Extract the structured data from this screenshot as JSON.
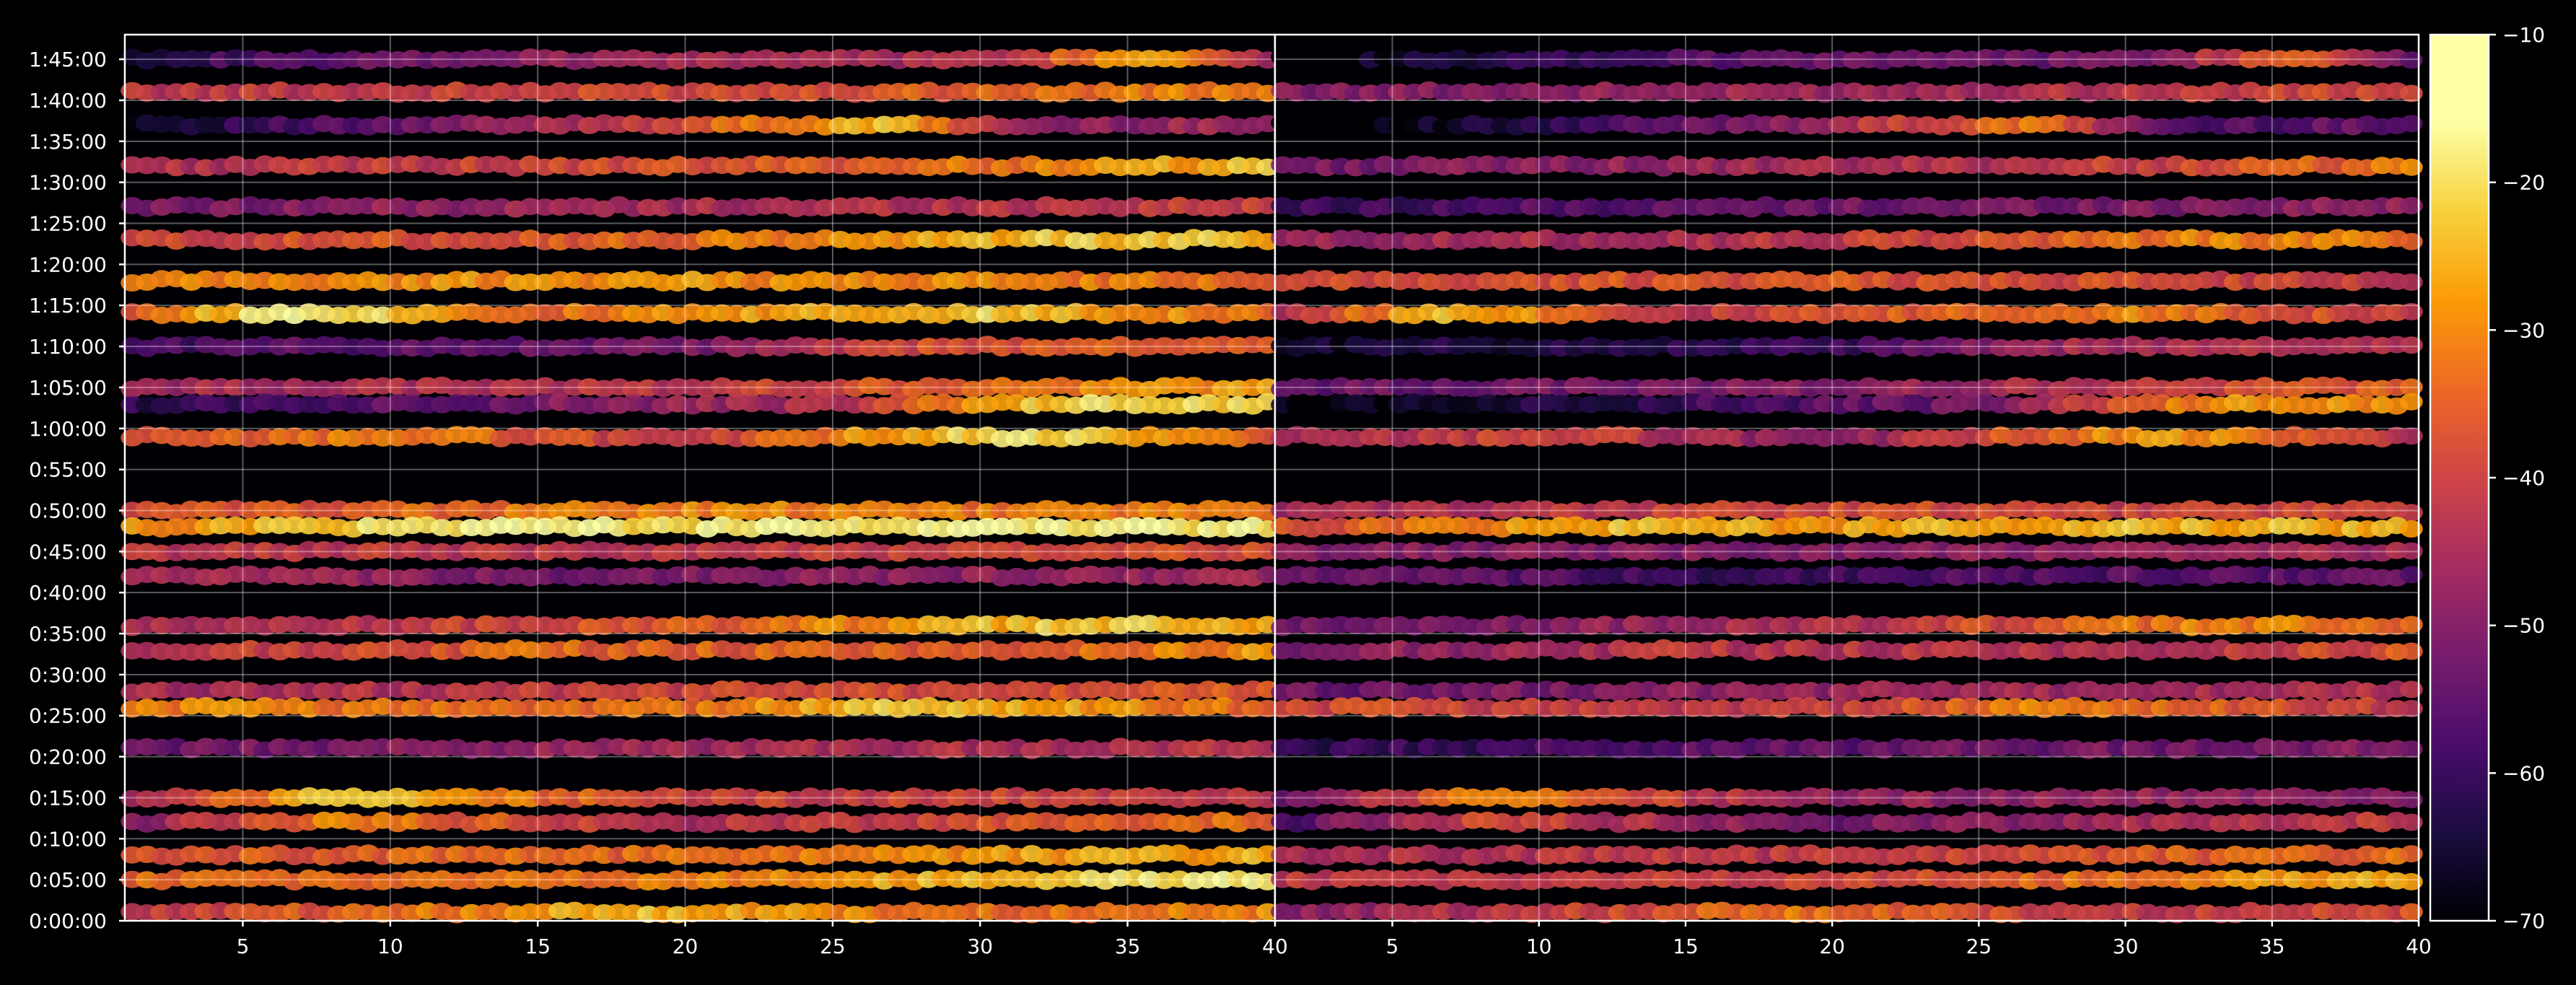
{
  "chart_data": {
    "type": "heatmap",
    "title": "",
    "xlabel": "",
    "ylabel": "",
    "colormap": "inferno",
    "background": "#000000",
    "grid": true,
    "panels": [
      {
        "name": "",
        "x_range": [
          1,
          40
        ],
        "x_ticks": [
          5,
          10,
          15,
          20,
          25,
          30,
          35,
          40
        ]
      },
      {
        "name": "",
        "x_range": [
          1,
          40
        ],
        "x_ticks": [
          5,
          10,
          15,
          20,
          25,
          30,
          35,
          40
        ]
      }
    ],
    "y_range_seconds": [
      0,
      6480
    ],
    "y_ticks": [
      "0:00:00",
      "0:05:00",
      "0:10:00",
      "0:15:00",
      "0:20:00",
      "0:25:00",
      "0:30:00",
      "0:35:00",
      "0:40:00",
      "0:45:00",
      "0:50:00",
      "0:55:00",
      "1:00:00",
      "1:05:00",
      "1:10:00",
      "1:15:00",
      "1:20:00",
      "1:25:00",
      "1:30:00",
      "1:35:00",
      "1:40:00",
      "1:45:00"
    ],
    "colorbar": {
      "range": [
        -70,
        -10
      ],
      "ticks": [
        "−10",
        "−20",
        "−30",
        "−40",
        "−50",
        "−60",
        "−70"
      ],
      "tick_values": [
        -10,
        -20,
        -30,
        -40,
        -50,
        -60,
        -70
      ]
    },
    "bands": [
      {
        "time": "1:45:00",
        "level": -48,
        "profile": [
          [
            1,
            -62
          ],
          [
            20,
            -45
          ],
          [
            30,
            -44
          ],
          [
            36,
            -24
          ],
          [
            40,
            -45
          ]
        ]
      },
      {
        "time": "1:41:00",
        "level": -38,
        "profile": [
          [
            1,
            -42
          ],
          [
            15,
            -40
          ],
          [
            25,
            -36
          ],
          [
            40,
            -30
          ]
        ]
      },
      {
        "time": "1:37:00",
        "level": -58,
        "profile": [
          [
            1,
            -66
          ],
          [
            10,
            -55
          ],
          [
            27,
            -24
          ],
          [
            32,
            -50
          ],
          [
            40,
            -45
          ]
        ]
      },
      {
        "time": "1:32:00",
        "level": -36,
        "profile": [
          [
            1,
            -44
          ],
          [
            20,
            -38
          ],
          [
            30,
            -32
          ],
          [
            40,
            -24
          ]
        ]
      },
      {
        "time": "1:27:00",
        "level": -46,
        "profile": [
          [
            1,
            -52
          ],
          [
            20,
            -45
          ],
          [
            40,
            -40
          ]
        ]
      },
      {
        "time": "1:23:00",
        "level": -32,
        "profile": [
          [
            1,
            -40
          ],
          [
            20,
            -34
          ],
          [
            33,
            -22
          ],
          [
            40,
            -24
          ]
        ]
      },
      {
        "time": "1:18:00",
        "level": -30,
        "profile": [
          [
            1,
            -32
          ],
          [
            15,
            -28
          ],
          [
            30,
            -30
          ],
          [
            40,
            -34
          ]
        ]
      },
      {
        "time": "1:14:00",
        "level": -30,
        "profile": [
          [
            1,
            -36
          ],
          [
            7,
            -14
          ],
          [
            15,
            -34
          ],
          [
            30,
            -22
          ],
          [
            40,
            -32
          ]
        ]
      },
      {
        "time": "1:10:00",
        "level": -50,
        "profile": [
          [
            1,
            -58
          ],
          [
            20,
            -52
          ],
          [
            28,
            -38
          ],
          [
            40,
            -34
          ]
        ]
      },
      {
        "time": "1:05:00",
        "level": -40,
        "profile": [
          [
            1,
            -46
          ],
          [
            20,
            -42
          ],
          [
            35,
            -30
          ],
          [
            40,
            -26
          ]
        ]
      },
      {
        "time": "1:03:00",
        "level": -52,
        "profile": [
          [
            1,
            -62
          ],
          [
            25,
            -44
          ],
          [
            33,
            -20
          ],
          [
            40,
            -22
          ]
        ]
      },
      {
        "time": "0:59:00",
        "level": -36,
        "profile": [
          [
            1,
            -40
          ],
          [
            10,
            -30
          ],
          [
            20,
            -42
          ],
          [
            31,
            -18
          ],
          [
            40,
            -36
          ]
        ]
      },
      {
        "time": "0:50:00",
        "level": -34,
        "profile": [
          [
            1,
            -38
          ],
          [
            20,
            -30
          ],
          [
            30,
            -32
          ],
          [
            40,
            -30
          ]
        ]
      },
      {
        "time": "0:48:00",
        "level": -24,
        "profile": [
          [
            1,
            -30
          ],
          [
            13,
            -16
          ],
          [
            20,
            -20
          ],
          [
            28,
            -16
          ],
          [
            40,
            -18
          ]
        ]
      },
      {
        "time": "0:45:00",
        "level": -40,
        "profile": [
          [
            1,
            -42
          ],
          [
            20,
            -42
          ],
          [
            40,
            -38
          ]
        ]
      },
      {
        "time": "0:42:00",
        "level": -46,
        "profile": [
          [
            1,
            -44
          ],
          [
            15,
            -52
          ],
          [
            40,
            -46
          ]
        ]
      },
      {
        "time": "0:36:00",
        "level": -38,
        "profile": [
          [
            1,
            -46
          ],
          [
            20,
            -36
          ],
          [
            33,
            -22
          ],
          [
            40,
            -26
          ]
        ]
      },
      {
        "time": "0:33:00",
        "level": -36,
        "profile": [
          [
            1,
            -44
          ],
          [
            15,
            -34
          ],
          [
            30,
            -36
          ],
          [
            40,
            -28
          ]
        ]
      },
      {
        "time": "0:28:00",
        "level": -40,
        "profile": [
          [
            1,
            -46
          ],
          [
            20,
            -40
          ],
          [
            40,
            -36
          ]
        ]
      },
      {
        "time": "0:26:00",
        "level": -32,
        "profile": [
          [
            1,
            -30
          ],
          [
            20,
            -34
          ],
          [
            27,
            -22
          ],
          [
            40,
            -34
          ]
        ]
      },
      {
        "time": "0:21:00",
        "level": -48,
        "profile": [
          [
            1,
            -54
          ],
          [
            20,
            -46
          ],
          [
            40,
            -42
          ]
        ]
      },
      {
        "time": "0:15:00",
        "level": -42,
        "profile": [
          [
            1,
            -48
          ],
          [
            8,
            -22
          ],
          [
            20,
            -40
          ],
          [
            40,
            -40
          ]
        ]
      },
      {
        "time": "0:12:00",
        "level": -44,
        "profile": [
          [
            1,
            -50
          ],
          [
            8,
            -30
          ],
          [
            20,
            -44
          ],
          [
            40,
            -32
          ]
        ]
      },
      {
        "time": "0:08:00",
        "level": -34,
        "profile": [
          [
            1,
            -36
          ],
          [
            20,
            -34
          ],
          [
            30,
            -28
          ],
          [
            40,
            -26
          ]
        ]
      },
      {
        "time": "0:05:00",
        "level": -30,
        "profile": [
          [
            1,
            -34
          ],
          [
            20,
            -32
          ],
          [
            40,
            -16
          ]
        ]
      },
      {
        "time": "0:01:00",
        "level": -36,
        "profile": [
          [
            1,
            -42
          ],
          [
            19,
            -24
          ],
          [
            30,
            -34
          ],
          [
            40,
            -30
          ]
        ]
      }
    ]
  }
}
